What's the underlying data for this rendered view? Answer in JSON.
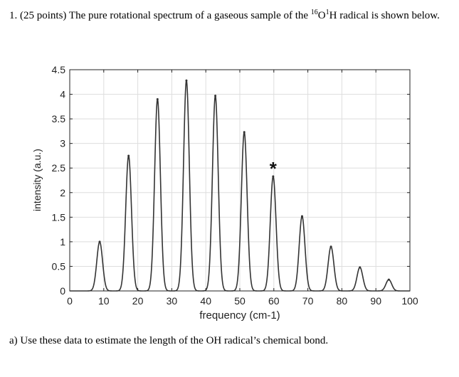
{
  "problem": {
    "number": "1.",
    "points": "(25 points)",
    "text_before_isotope": "The pure rotational spectrum of a gaseous sample of the",
    "mass_O": "16",
    "element_O": "O",
    "mass_H": "1",
    "element_H": "H",
    "text_after_isotope": "radical is shown below."
  },
  "question_a": "a) Use these data to estimate the length of the OH radical’s chemical bond.",
  "marker": {
    "symbol": "*",
    "at_x": 60
  },
  "chart_data": {
    "type": "line",
    "title": "",
    "xlabel": "frequency (cm-1)",
    "ylabel": "intensity (a.u.)",
    "xlim": [
      0,
      100
    ],
    "ylim": [
      0,
      4.5
    ],
    "xticks": [
      0,
      10,
      20,
      30,
      40,
      50,
      60,
      70,
      80,
      90,
      100
    ],
    "yticks": [
      0,
      0.5,
      1,
      1.5,
      2,
      2.5,
      3,
      3.5,
      4,
      4.5
    ],
    "xtick_labels": [
      "0",
      "10",
      "20",
      "30",
      "40",
      "50",
      "60",
      "70",
      "80",
      "90",
      "100"
    ],
    "ytick_labels": [
      "0",
      "0.5",
      "1",
      "1.5",
      "2",
      "2.5",
      "3",
      "3.5",
      "4",
      "4.5"
    ],
    "grid": true,
    "line_color": "#333333",
    "peaks": [
      {
        "x": 8.8,
        "y": 1.0
      },
      {
        "x": 17.3,
        "y": 2.75
      },
      {
        "x": 25.8,
        "y": 3.9
      },
      {
        "x": 34.3,
        "y": 4.28
      },
      {
        "x": 42.8,
        "y": 3.97
      },
      {
        "x": 51.3,
        "y": 3.23
      },
      {
        "x": 59.8,
        "y": 2.33
      },
      {
        "x": 68.3,
        "y": 1.52
      },
      {
        "x": 76.8,
        "y": 0.9
      },
      {
        "x": 85.3,
        "y": 0.48
      },
      {
        "x": 93.8,
        "y": 0.23
      }
    ]
  }
}
